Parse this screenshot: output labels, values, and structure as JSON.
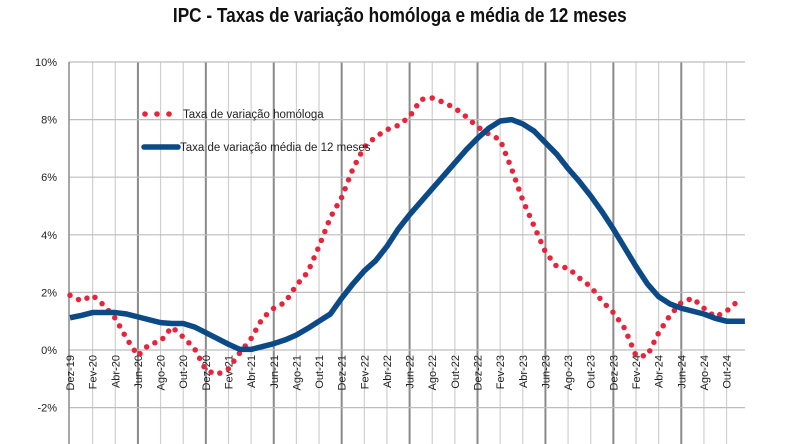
{
  "chart_data": {
    "type": "line",
    "title": "IPC - Taxas de variação homóloga e média de 12 meses",
    "xlabel": "",
    "ylabel": "",
    "ylim": [
      -2,
      10
    ],
    "y_ticks": [
      -2,
      0,
      2,
      4,
      6,
      8,
      10
    ],
    "y_tick_labels": [
      "-2%",
      "0%",
      "2%",
      "4%",
      "6%",
      "8%",
      "10%"
    ],
    "grid": true,
    "legend_position": "top-left",
    "x": [
      "Dez-19",
      "Jan-20",
      "Fev-20",
      "Mar-20",
      "Abr-20",
      "Mai-20",
      "Jun-20",
      "Jul-20",
      "Ago-20",
      "Set-20",
      "Out-20",
      "Nov-20",
      "Dez-20",
      "Jan-21",
      "Fev-21",
      "Mar-21",
      "Abr-21",
      "Mai-21",
      "Jun-21",
      "Jul-21",
      "Ago-21",
      "Set-21",
      "Out-21",
      "Nov-21",
      "Dez-21",
      "Jan-22",
      "Fev-22",
      "Mar-22",
      "Abr-22",
      "Mai-22",
      "Jun-22",
      "Jul-22",
      "Ago-22",
      "Set-22",
      "Out-22",
      "Nov-22",
      "Dez-22",
      "Jan-23",
      "Fev-23",
      "Mar-23",
      "Abr-23",
      "Mai-23",
      "Jun-23",
      "Jul-23",
      "Ago-23",
      "Set-23",
      "Out-23",
      "Nov-23",
      "Dez-23",
      "Jan-24",
      "Fev-24",
      "Mar-24",
      "Abr-24",
      "Mai-24",
      "Jun-24",
      "Jul-24",
      "Ago-24",
      "Set-24",
      "Out-24",
      "Nov-24"
    ],
    "x_tick_labels": [
      "Dez-19",
      "Fev-20",
      "Abr-20",
      "Jun-20",
      "Ago-20",
      "Out-20",
      "Dez-20",
      "Fev-21",
      "Abr-21",
      "Jun-21",
      "Ago-21",
      "Out-21",
      "Dez-21",
      "Fev-22",
      "Abr-22",
      "Jun-22",
      "Ago-22",
      "Out-22",
      "Dez-22",
      "Fev-23",
      "Abr-23",
      "Jun-23",
      "Ago-23",
      "Out-23",
      "Dez-23",
      "Fev-24",
      "Abr-24",
      "Jun-24",
      "Ago-24",
      "Out-24"
    ],
    "series": [
      {
        "name": "Taxa de variação homóloga",
        "style": "dotted",
        "color": "#e8243c",
        "values": [
          1.9,
          1.7,
          1.9,
          1.55,
          1.1,
          0.4,
          -0.2,
          0.2,
          0.3,
          0.8,
          0.45,
          0.05,
          -0.7,
          -0.85,
          -0.65,
          -0.1,
          0.4,
          1.1,
          1.45,
          1.65,
          2.25,
          2.7,
          3.6,
          4.6,
          5.3,
          6.3,
          7.05,
          7.4,
          7.65,
          7.8,
          8.1,
          8.7,
          8.75,
          8.6,
          8.4,
          8.1,
          7.75,
          7.5,
          7.3,
          6.3,
          5.2,
          4.3,
          3.4,
          2.9,
          2.85,
          2.5,
          2.2,
          1.7,
          1.3,
          0.75,
          -0.2,
          -0.2,
          0.6,
          1.2,
          1.65,
          1.8,
          1.45,
          1.15,
          1.35,
          1.7
        ]
      },
      {
        "name": "Taxa de variação média de 12 meses",
        "style": "solid",
        "color": "#0b4a86",
        "values": [
          1.12,
          1.2,
          1.3,
          1.3,
          1.3,
          1.25,
          1.15,
          1.05,
          0.95,
          0.92,
          0.92,
          0.8,
          0.6,
          0.4,
          0.2,
          0.02,
          0.02,
          0.12,
          0.22,
          0.35,
          0.52,
          0.75,
          1.0,
          1.25,
          1.8,
          2.3,
          2.75,
          3.1,
          3.6,
          4.2,
          4.7,
          5.15,
          5.6,
          6.05,
          6.5,
          6.95,
          7.35,
          7.7,
          7.95,
          8.0,
          7.85,
          7.6,
          7.2,
          6.8,
          6.3,
          5.85,
          5.35,
          4.8,
          4.2,
          3.55,
          2.9,
          2.3,
          1.85,
          1.6,
          1.45,
          1.35,
          1.25,
          1.1,
          1.0,
          1.0
        ]
      }
    ]
  }
}
